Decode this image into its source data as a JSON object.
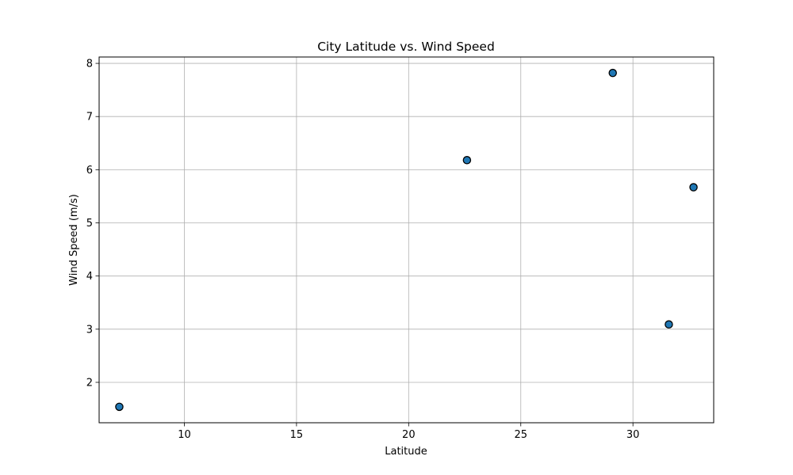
{
  "chart_data": {
    "type": "scatter",
    "title": "City Latitude vs. Wind Speed",
    "xlabel": "Latitude",
    "ylabel": "Wind Speed (m/s)",
    "xlim": [
      6.2,
      33.6
    ],
    "ylim": [
      1.24,
      8.12
    ],
    "xticks": [
      10,
      15,
      20,
      25,
      30
    ],
    "yticks": [
      2,
      3,
      4,
      5,
      6,
      7,
      8
    ],
    "grid": true,
    "marker_color": "#1f77b4",
    "marker_edge_color": "#000000",
    "points": [
      {
        "x": 7.1,
        "y": 1.54
      },
      {
        "x": 22.6,
        "y": 6.18
      },
      {
        "x": 29.1,
        "y": 7.82
      },
      {
        "x": 31.6,
        "y": 3.09
      },
      {
        "x": 32.7,
        "y": 5.67
      }
    ]
  }
}
